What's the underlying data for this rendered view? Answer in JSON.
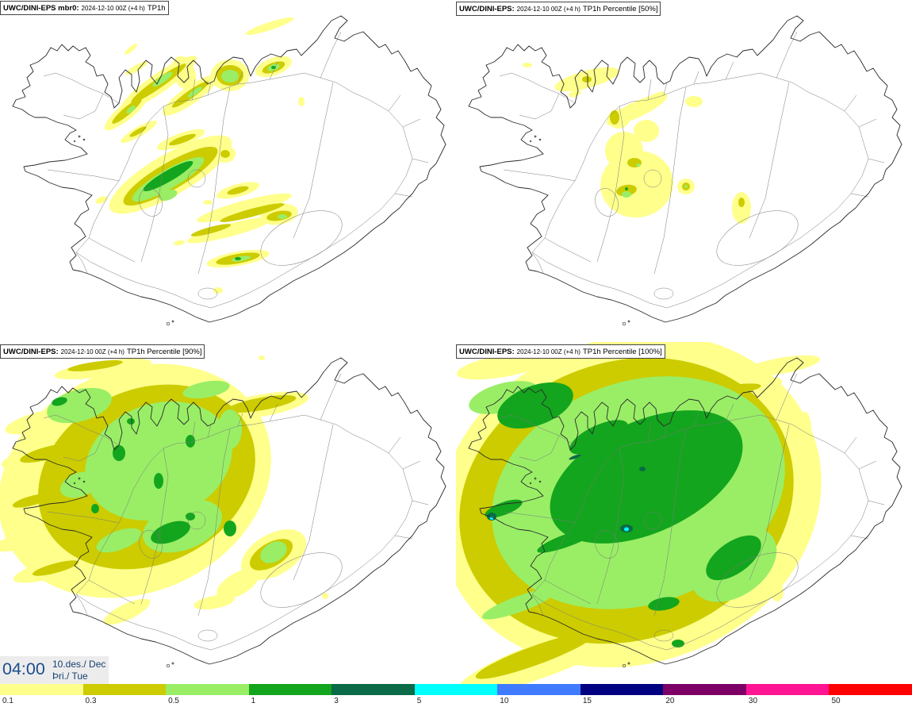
{
  "panels": [
    {
      "model": "UWC/DINI-EPS mbr0:",
      "run": "2024-12-10 00Z (+4 h)",
      "field": "TP1h"
    },
    {
      "model": "UWC/DINI-EPS:",
      "run": "2024-12-10 00Z (+4 h)",
      "field": "TP1h Percentile [50%]"
    },
    {
      "model": "UWC/DINI-EPS:",
      "run": "2024-12-10 00Z (+4 h)",
      "field": "TP1h Percentile [90%]"
    },
    {
      "model": "UWC/DINI-EPS:",
      "run": "2024-12-10 00Z (+4 h)",
      "field": "TP1h Percentile [100%]"
    }
  ],
  "valid_time": {
    "clock": "04:00",
    "date": "10.des./ Dec",
    "weekday": "Þri./ Tue"
  },
  "colorbar": {
    "stops": [
      {
        "label": "0.1",
        "color": "#ffff8c"
      },
      {
        "label": "0.3",
        "color": "#cccc00"
      },
      {
        "label": "0.5",
        "color": "#99ee66"
      },
      {
        "label": "1",
        "color": "#13a51d"
      },
      {
        "label": "3",
        "color": "#0b6a47"
      },
      {
        "label": "5",
        "color": "#00ffff"
      },
      {
        "label": "10",
        "color": "#3f7bff"
      },
      {
        "label": "15",
        "color": "#000080"
      },
      {
        "label": "20",
        "color": "#7d0066"
      },
      {
        "label": "30",
        "color": "#ff1493"
      },
      {
        "label": "50",
        "color": "#ff0000"
      }
    ]
  }
}
